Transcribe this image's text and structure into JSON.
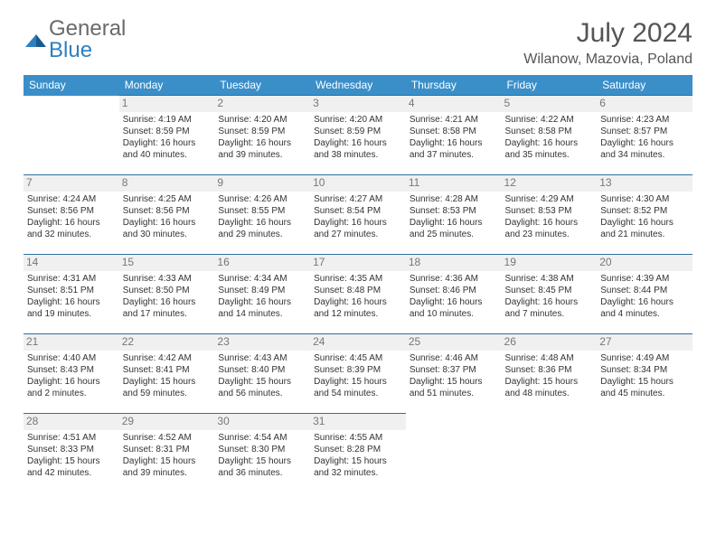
{
  "logo": {
    "text1": "General",
    "text2": "Blue"
  },
  "header": {
    "month_title": "July 2024",
    "location": "Wilanow, Mazovia, Poland"
  },
  "day_names": [
    "Sunday",
    "Monday",
    "Tuesday",
    "Wednesday",
    "Thursday",
    "Friday",
    "Saturday"
  ],
  "colors": {
    "header_bg": "#3a8fc9",
    "header_text": "#ffffff",
    "daynum_bg": "#f0f0f0",
    "daynum_color": "#777777",
    "row_border": "#2f6f9f",
    "body_text": "#333333",
    "logo_gray": "#6a6a6a",
    "logo_blue": "#2f7fbf"
  },
  "weeks": [
    [
      null,
      {
        "n": "1",
        "sr": "4:19 AM",
        "ss": "8:59 PM",
        "dl": "16 hours and 40 minutes."
      },
      {
        "n": "2",
        "sr": "4:20 AM",
        "ss": "8:59 PM",
        "dl": "16 hours and 39 minutes."
      },
      {
        "n": "3",
        "sr": "4:20 AM",
        "ss": "8:59 PM",
        "dl": "16 hours and 38 minutes."
      },
      {
        "n": "4",
        "sr": "4:21 AM",
        "ss": "8:58 PM",
        "dl": "16 hours and 37 minutes."
      },
      {
        "n": "5",
        "sr": "4:22 AM",
        "ss": "8:58 PM",
        "dl": "16 hours and 35 minutes."
      },
      {
        "n": "6",
        "sr": "4:23 AM",
        "ss": "8:57 PM",
        "dl": "16 hours and 34 minutes."
      }
    ],
    [
      {
        "n": "7",
        "sr": "4:24 AM",
        "ss": "8:56 PM",
        "dl": "16 hours and 32 minutes."
      },
      {
        "n": "8",
        "sr": "4:25 AM",
        "ss": "8:56 PM",
        "dl": "16 hours and 30 minutes."
      },
      {
        "n": "9",
        "sr": "4:26 AM",
        "ss": "8:55 PM",
        "dl": "16 hours and 29 minutes."
      },
      {
        "n": "10",
        "sr": "4:27 AM",
        "ss": "8:54 PM",
        "dl": "16 hours and 27 minutes."
      },
      {
        "n": "11",
        "sr": "4:28 AM",
        "ss": "8:53 PM",
        "dl": "16 hours and 25 minutes."
      },
      {
        "n": "12",
        "sr": "4:29 AM",
        "ss": "8:53 PM",
        "dl": "16 hours and 23 minutes."
      },
      {
        "n": "13",
        "sr": "4:30 AM",
        "ss": "8:52 PM",
        "dl": "16 hours and 21 minutes."
      }
    ],
    [
      {
        "n": "14",
        "sr": "4:31 AM",
        "ss": "8:51 PM",
        "dl": "16 hours and 19 minutes."
      },
      {
        "n": "15",
        "sr": "4:33 AM",
        "ss": "8:50 PM",
        "dl": "16 hours and 17 minutes."
      },
      {
        "n": "16",
        "sr": "4:34 AM",
        "ss": "8:49 PM",
        "dl": "16 hours and 14 minutes."
      },
      {
        "n": "17",
        "sr": "4:35 AM",
        "ss": "8:48 PM",
        "dl": "16 hours and 12 minutes."
      },
      {
        "n": "18",
        "sr": "4:36 AM",
        "ss": "8:46 PM",
        "dl": "16 hours and 10 minutes."
      },
      {
        "n": "19",
        "sr": "4:38 AM",
        "ss": "8:45 PM",
        "dl": "16 hours and 7 minutes."
      },
      {
        "n": "20",
        "sr": "4:39 AM",
        "ss": "8:44 PM",
        "dl": "16 hours and 4 minutes."
      }
    ],
    [
      {
        "n": "21",
        "sr": "4:40 AM",
        "ss": "8:43 PM",
        "dl": "16 hours and 2 minutes."
      },
      {
        "n": "22",
        "sr": "4:42 AM",
        "ss": "8:41 PM",
        "dl": "15 hours and 59 minutes."
      },
      {
        "n": "23",
        "sr": "4:43 AM",
        "ss": "8:40 PM",
        "dl": "15 hours and 56 minutes."
      },
      {
        "n": "24",
        "sr": "4:45 AM",
        "ss": "8:39 PM",
        "dl": "15 hours and 54 minutes."
      },
      {
        "n": "25",
        "sr": "4:46 AM",
        "ss": "8:37 PM",
        "dl": "15 hours and 51 minutes."
      },
      {
        "n": "26",
        "sr": "4:48 AM",
        "ss": "8:36 PM",
        "dl": "15 hours and 48 minutes."
      },
      {
        "n": "27",
        "sr": "4:49 AM",
        "ss": "8:34 PM",
        "dl": "15 hours and 45 minutes."
      }
    ],
    [
      {
        "n": "28",
        "sr": "4:51 AM",
        "ss": "8:33 PM",
        "dl": "15 hours and 42 minutes."
      },
      {
        "n": "29",
        "sr": "4:52 AM",
        "ss": "8:31 PM",
        "dl": "15 hours and 39 minutes."
      },
      {
        "n": "30",
        "sr": "4:54 AM",
        "ss": "8:30 PM",
        "dl": "15 hours and 36 minutes."
      },
      {
        "n": "31",
        "sr": "4:55 AM",
        "ss": "8:28 PM",
        "dl": "15 hours and 32 minutes."
      },
      null,
      null,
      null
    ]
  ],
  "labels": {
    "sunrise": "Sunrise:",
    "sunset": "Sunset:",
    "daylight": "Daylight:"
  }
}
